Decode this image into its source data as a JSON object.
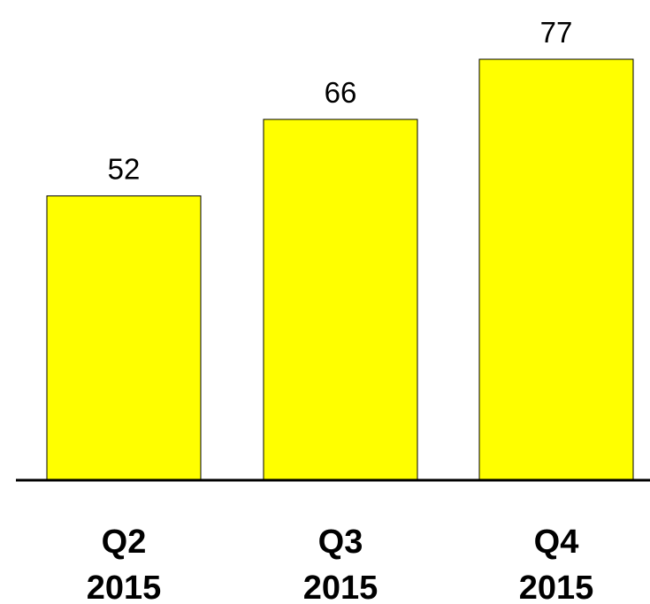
{
  "chart_data": {
    "type": "bar",
    "categories": [
      [
        "Q2",
        "2015"
      ],
      [
        "Q3",
        "2015"
      ],
      [
        "Q4",
        "2015"
      ]
    ],
    "values": [
      52,
      66,
      77
    ],
    "data_labels": [
      "52",
      "66",
      "77"
    ],
    "title": "",
    "xlabel": "",
    "ylabel": "",
    "ylim": [
      0,
      77
    ],
    "grid": false,
    "legend": "none",
    "colors": {
      "bar_fill": "#ffff00",
      "bar_stroke": "#000000",
      "axis": "#000000"
    }
  }
}
